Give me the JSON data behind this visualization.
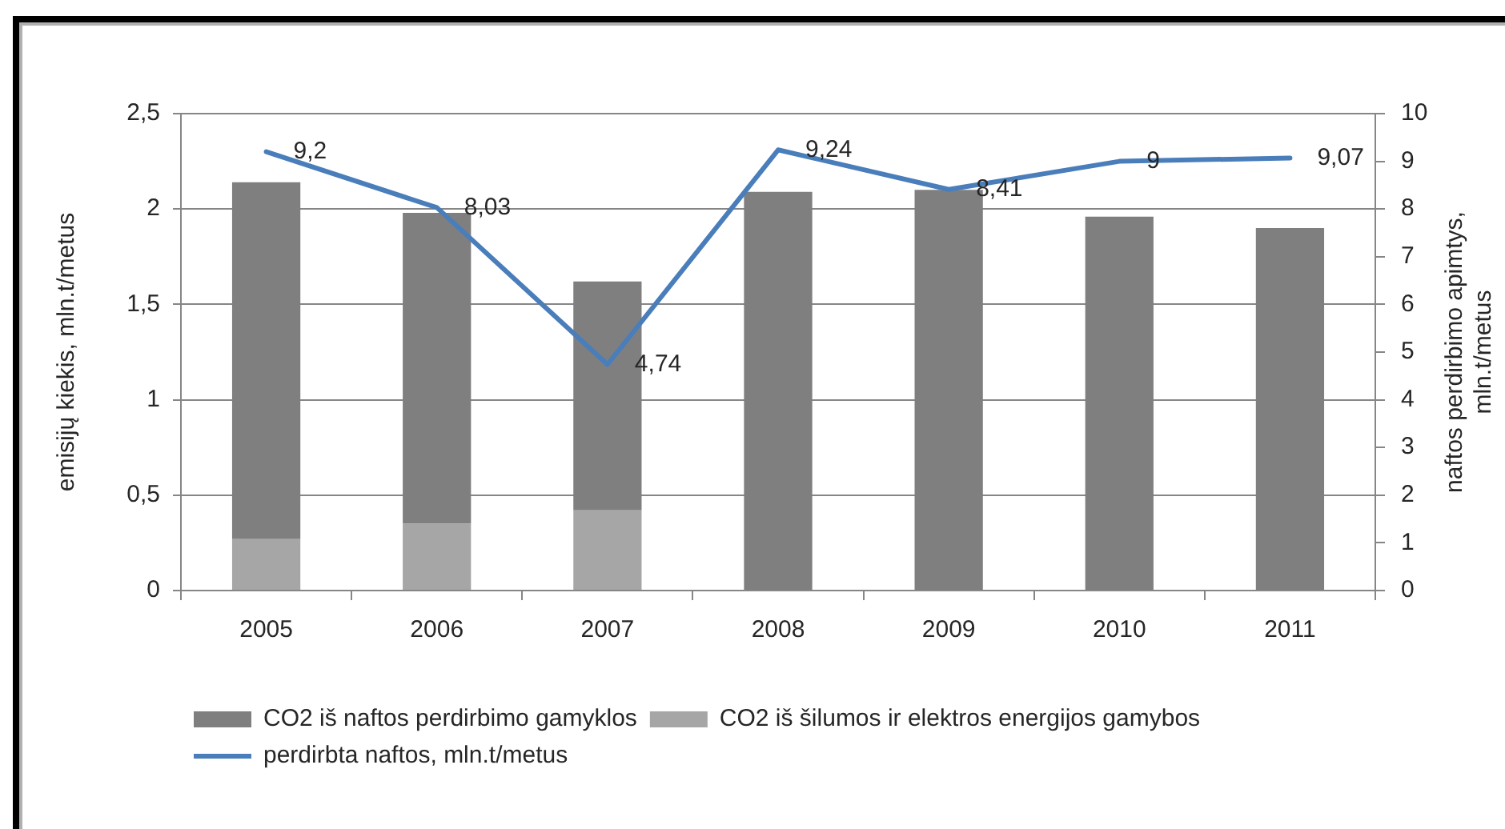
{
  "chart_data": {
    "type": "bar",
    "categories": [
      "2005",
      "2006",
      "2007",
      "2008",
      "2009",
      "2010",
      "2011"
    ],
    "ylabel": "emisijų kiekis, mln.t/metus",
    "y2label": "naftos perdirbimo apimtys, mln.t/metus",
    "stacked": true,
    "series": [
      {
        "name": "CO2 iš šilumos ir elektros energijos gamybos",
        "color": "#a6a6a6",
        "values": [
          0.27,
          0.35,
          0.42,
          null,
          null,
          null,
          null
        ]
      },
      {
        "name": "CO2 iš naftos perdirbimo gamyklos",
        "color": "#7f7f7f",
        "values": [
          1.87,
          1.63,
          1.2,
          2.09,
          2.1,
          1.96,
          1.9
        ]
      },
      {
        "name": "perdirbta naftos, mln.t/metus",
        "type": "line",
        "axis": "y2",
        "color": "#4a7ebb",
        "values": [
          9.2,
          8.03,
          4.74,
          9.24,
          8.41,
          9,
          9.07
        ],
        "value_labels": [
          "9,2",
          "8,03",
          "4,74",
          "9,24",
          "8,41",
          "9",
          "9,07"
        ]
      }
    ],
    "ylim": [
      0,
      2.5
    ],
    "yticks": [
      0,
      {
        "value": 0.5,
        "label": "0,5"
      },
      1,
      {
        "value": 1.5,
        "label": "1,5"
      },
      2,
      {
        "value": 2.5,
        "label": "2,5"
      }
    ],
    "y2lim": [
      0,
      10
    ],
    "y2ticks": [
      0,
      1,
      2,
      3,
      4,
      5,
      6,
      7,
      8,
      9,
      10
    ],
    "grid": "y",
    "legend": "bottom"
  }
}
